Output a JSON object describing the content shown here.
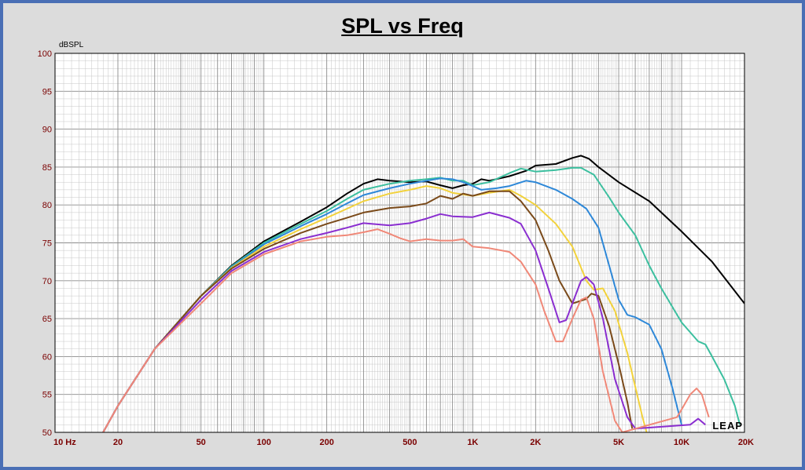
{
  "chart_data": {
    "type": "line",
    "title": "SPL vs Freq",
    "ylabel": "dBSPL",
    "xscale": "log",
    "xlim": [
      10,
      20000
    ],
    "ylim": [
      50,
      100
    ],
    "grid": true,
    "x_ticks": [
      {
        "value": 10,
        "label": "10  Hz"
      },
      {
        "value": 20,
        "label": "20"
      },
      {
        "value": 50,
        "label": "50"
      },
      {
        "value": 100,
        "label": "100"
      },
      {
        "value": 200,
        "label": "200"
      },
      {
        "value": 500,
        "label": "500"
      },
      {
        "value": 1000,
        "label": "1K"
      },
      {
        "value": 2000,
        "label": "2K"
      },
      {
        "value": 5000,
        "label": "5K"
      },
      {
        "value": 10000,
        "label": "10K"
      },
      {
        "value": 20000,
        "label": "20K"
      }
    ],
    "y_ticks": [
      100,
      95,
      90,
      85,
      80,
      75,
      70,
      65,
      60,
      55,
      50
    ],
    "logo": "LEAP",
    "series": [
      {
        "color": "#000000",
        "points": [
          [
            17,
            50
          ],
          [
            20,
            53.5
          ],
          [
            30,
            61
          ],
          [
            50,
            68
          ],
          [
            70,
            72
          ],
          [
            100,
            75.2
          ],
          [
            150,
            77.8
          ],
          [
            200,
            79.7
          ],
          [
            250,
            81.5
          ],
          [
            300,
            82.8
          ],
          [
            350,
            83.4
          ],
          [
            400,
            83.2
          ],
          [
            500,
            83
          ],
          [
            600,
            83.1
          ],
          [
            700,
            82.6
          ],
          [
            800,
            82.2
          ],
          [
            900,
            82.6
          ],
          [
            1000,
            82.8
          ],
          [
            1100,
            83.4
          ],
          [
            1200,
            83.2
          ],
          [
            1500,
            83.8
          ],
          [
            1800,
            84.5
          ],
          [
            2000,
            85.2
          ],
          [
            2500,
            85.4
          ],
          [
            3000,
            86.2
          ],
          [
            3300,
            86.5
          ],
          [
            3600,
            86.1
          ],
          [
            4000,
            85
          ],
          [
            5000,
            83
          ],
          [
            7000,
            80.5
          ],
          [
            10000,
            76.5
          ],
          [
            14000,
            72.5
          ],
          [
            20000,
            67
          ]
        ]
      },
      {
        "color": "#3cbf9f",
        "points": [
          [
            17,
            50
          ],
          [
            20,
            53.5
          ],
          [
            30,
            61
          ],
          [
            50,
            68
          ],
          [
            70,
            71.9
          ],
          [
            100,
            75
          ],
          [
            150,
            77.5
          ],
          [
            200,
            79.2
          ],
          [
            250,
            80.8
          ],
          [
            300,
            82
          ],
          [
            400,
            82.8
          ],
          [
            500,
            83.2
          ],
          [
            600,
            83.4
          ],
          [
            700,
            83.6
          ],
          [
            800,
            83.2
          ],
          [
            900,
            83.2
          ],
          [
            1000,
            82.6
          ],
          [
            1200,
            83
          ],
          [
            1500,
            84.2
          ],
          [
            1700,
            84.8
          ],
          [
            2000,
            84.4
          ],
          [
            2500,
            84.6
          ],
          [
            3000,
            84.9
          ],
          [
            3300,
            84.9
          ],
          [
            3800,
            84
          ],
          [
            4500,
            81
          ],
          [
            5000,
            79
          ],
          [
            6000,
            76
          ],
          [
            7000,
            72
          ],
          [
            8000,
            69
          ],
          [
            10000,
            64.5
          ],
          [
            12000,
            62
          ],
          [
            13000,
            61.6
          ],
          [
            14000,
            60
          ],
          [
            16000,
            57
          ],
          [
            18000,
            53.5
          ],
          [
            19000,
            51
          ]
        ]
      },
      {
        "color": "#2e88d8",
        "points": [
          [
            17,
            50
          ],
          [
            20,
            53.5
          ],
          [
            30,
            61
          ],
          [
            50,
            68
          ],
          [
            70,
            71.8
          ],
          [
            100,
            74.8
          ],
          [
            150,
            77.2
          ],
          [
            200,
            78.8
          ],
          [
            250,
            80.2
          ],
          [
            300,
            81.3
          ],
          [
            400,
            82.2
          ],
          [
            500,
            82.8
          ],
          [
            600,
            83.2
          ],
          [
            700,
            83.5
          ],
          [
            800,
            83.4
          ],
          [
            900,
            83
          ],
          [
            1000,
            82.5
          ],
          [
            1100,
            82
          ],
          [
            1300,
            82.2
          ],
          [
            1500,
            82.5
          ],
          [
            1800,
            83.2
          ],
          [
            2000,
            83
          ],
          [
            2500,
            82
          ],
          [
            3000,
            80.8
          ],
          [
            3500,
            79.5
          ],
          [
            4000,
            77
          ],
          [
            4500,
            72
          ],
          [
            5000,
            67.5
          ],
          [
            5500,
            65.5
          ],
          [
            6000,
            65.2
          ],
          [
            7000,
            64.2
          ],
          [
            8000,
            61
          ],
          [
            9000,
            56
          ],
          [
            10000,
            51
          ]
        ]
      },
      {
        "color": "#f2d23c",
        "points": [
          [
            17,
            50
          ],
          [
            20,
            53.5
          ],
          [
            30,
            61
          ],
          [
            50,
            68
          ],
          [
            70,
            71.7
          ],
          [
            100,
            74.5
          ],
          [
            150,
            76.8
          ],
          [
            200,
            78.3
          ],
          [
            250,
            79.5
          ],
          [
            300,
            80.5
          ],
          [
            400,
            81.5
          ],
          [
            500,
            82
          ],
          [
            600,
            82.5
          ],
          [
            700,
            82.2
          ],
          [
            800,
            81.6
          ],
          [
            1000,
            81.2
          ],
          [
            1200,
            81.6
          ],
          [
            1500,
            82
          ],
          [
            1700,
            81.2
          ],
          [
            2000,
            80
          ],
          [
            2500,
            77.5
          ],
          [
            3000,
            74.5
          ],
          [
            3500,
            70
          ],
          [
            3800,
            68.8
          ],
          [
            4200,
            69
          ],
          [
            4800,
            66
          ],
          [
            5500,
            60.5
          ],
          [
            6000,
            56
          ],
          [
            6500,
            52
          ],
          [
            6800,
            50
          ]
        ]
      },
      {
        "color": "#7a4a1a",
        "points": [
          [
            17,
            50
          ],
          [
            20,
            53.5
          ],
          [
            30,
            61
          ],
          [
            50,
            68
          ],
          [
            70,
            71.6
          ],
          [
            100,
            74.2
          ],
          [
            150,
            76.3
          ],
          [
            200,
            77.5
          ],
          [
            250,
            78.3
          ],
          [
            300,
            79
          ],
          [
            400,
            79.6
          ],
          [
            500,
            79.8
          ],
          [
            600,
            80.2
          ],
          [
            700,
            81.2
          ],
          [
            800,
            80.8
          ],
          [
            900,
            81.5
          ],
          [
            1000,
            81.2
          ],
          [
            1200,
            81.8
          ],
          [
            1500,
            81.8
          ],
          [
            1700,
            80.5
          ],
          [
            2000,
            78
          ],
          [
            2300,
            74
          ],
          [
            2600,
            70
          ],
          [
            3000,
            67
          ],
          [
            3500,
            67.6
          ],
          [
            3700,
            68.3
          ],
          [
            4000,
            68
          ],
          [
            4500,
            64
          ],
          [
            5000,
            59
          ],
          [
            5500,
            54
          ],
          [
            5800,
            50.5
          ]
        ]
      },
      {
        "color": "#8a2ed0",
        "points": [
          [
            17,
            50
          ],
          [
            20,
            53.5
          ],
          [
            30,
            61
          ],
          [
            50,
            67.5
          ],
          [
            70,
            71.3
          ],
          [
            100,
            73.8
          ],
          [
            150,
            75.5
          ],
          [
            200,
            76.3
          ],
          [
            250,
            77
          ],
          [
            300,
            77.6
          ],
          [
            400,
            77.3
          ],
          [
            500,
            77.6
          ],
          [
            600,
            78.2
          ],
          [
            700,
            78.8
          ],
          [
            800,
            78.5
          ],
          [
            1000,
            78.4
          ],
          [
            1200,
            79
          ],
          [
            1500,
            78.3
          ],
          [
            1700,
            77.5
          ],
          [
            2000,
            74
          ],
          [
            2300,
            69
          ],
          [
            2600,
            64.5
          ],
          [
            2800,
            64.8
          ],
          [
            3000,
            67
          ],
          [
            3300,
            70
          ],
          [
            3500,
            70.5
          ],
          [
            3800,
            69.5
          ],
          [
            4200,
            65
          ],
          [
            4800,
            57
          ],
          [
            5500,
            52
          ],
          [
            6000,
            50.5
          ],
          [
            11000,
            51
          ],
          [
            12000,
            51.8
          ],
          [
            13000,
            51
          ]
        ]
      },
      {
        "color": "#f08878",
        "points": [
          [
            17,
            50
          ],
          [
            20,
            53.5
          ],
          [
            30,
            61
          ],
          [
            50,
            67
          ],
          [
            70,
            71
          ],
          [
            100,
            73.5
          ],
          [
            150,
            75.2
          ],
          [
            200,
            75.8
          ],
          [
            250,
            76
          ],
          [
            300,
            76.4
          ],
          [
            350,
            76.8
          ],
          [
            400,
            76.2
          ],
          [
            450,
            75.6
          ],
          [
            500,
            75.2
          ],
          [
            600,
            75.5
          ],
          [
            700,
            75.3
          ],
          [
            800,
            75.3
          ],
          [
            900,
            75.5
          ],
          [
            1000,
            74.5
          ],
          [
            1200,
            74.3
          ],
          [
            1500,
            73.8
          ],
          [
            1700,
            72.5
          ],
          [
            2000,
            69.5
          ],
          [
            2200,
            66
          ],
          [
            2500,
            62
          ],
          [
            2700,
            62
          ],
          [
            3000,
            65
          ],
          [
            3300,
            67.5
          ],
          [
            3500,
            67.8
          ],
          [
            3800,
            65
          ],
          [
            4200,
            58
          ],
          [
            4800,
            51.5
          ],
          [
            5200,
            50
          ],
          [
            9500,
            52
          ],
          [
            10000,
            53
          ],
          [
            11000,
            55
          ],
          [
            11800,
            55.8
          ],
          [
            12500,
            55
          ],
          [
            13500,
            52
          ]
        ]
      }
    ]
  }
}
